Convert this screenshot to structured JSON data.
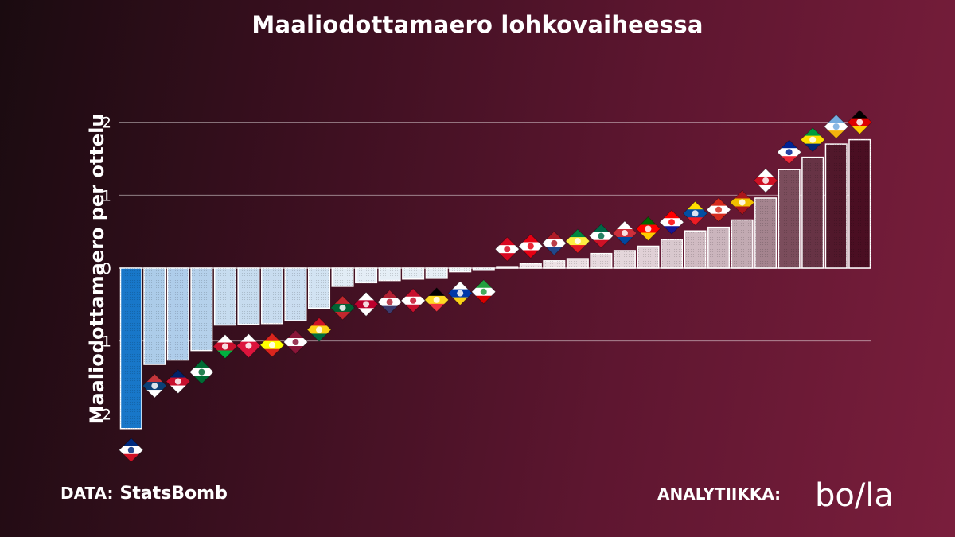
{
  "header": {
    "title": "Maaliodottamaero lohkovaiheessa"
  },
  "footer": {
    "data_label": "DATA:",
    "data_source": "StatsBomb",
    "analytics_label": "ANALYTIIKKA:",
    "logo_text": "bo/la"
  },
  "colors": {
    "negative_strong": "#1877c9",
    "negative_light": "#c8dcef",
    "positive_light": "#dcc7d1",
    "positive_strong": "#4a0e22"
  },
  "chart_data": {
    "type": "bar",
    "title": "Maaliodottamaero lohkovaiheessa",
    "xlabel": "",
    "ylabel": "Maaliodottamaero per ottelu",
    "ylim": [
      -2.4,
      2.3
    ],
    "yticks": [
      -2,
      -1,
      0,
      1,
      2
    ],
    "grid": true,
    "legend": "none",
    "categories": [
      "Costa Rica",
      "Serbia",
      "Australia",
      "Saudi Arabia",
      "Wales",
      "Poland",
      "Vietnam",
      "Qatar",
      "Ghana",
      "Morocco",
      "Japan",
      "USA",
      "Denmark",
      "Belgium",
      "Uruguay",
      "Iran",
      "Canada",
      "Tunisia",
      "Netherlands",
      "Senegal",
      "Mexico",
      "South Korea",
      "Portugal",
      "Croatia",
      "Ecuador",
      "Switzerland",
      "Spain",
      "England",
      "France",
      "Brazil",
      "Argentina",
      "Germany"
    ],
    "values": [
      -2.2,
      -1.32,
      -1.26,
      -1.13,
      -0.78,
      -0.77,
      -0.76,
      -0.72,
      -0.55,
      -0.25,
      -0.2,
      -0.17,
      -0.15,
      -0.14,
      -0.05,
      -0.03,
      0.02,
      0.06,
      0.1,
      0.13,
      0.2,
      0.24,
      0.3,
      0.39,
      0.51,
      0.56,
      0.66,
      0.96,
      1.35,
      1.52,
      1.7,
      1.76
    ]
  }
}
